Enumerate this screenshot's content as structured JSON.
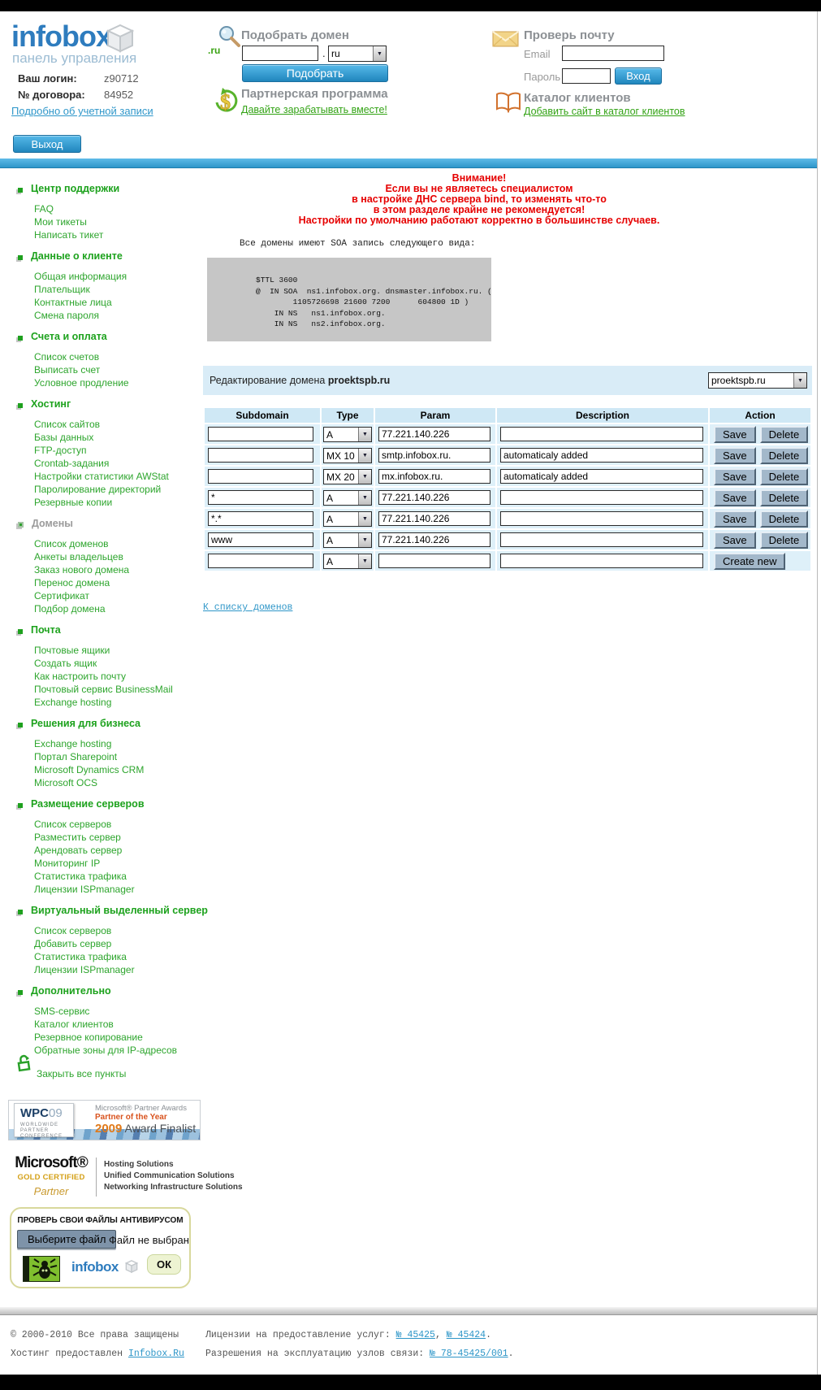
{
  "header": {
    "logo": "infobox",
    "logo_subtitle": "панель управления",
    "login_label": "Ваш логин:",
    "login_value": "z90712",
    "contract_label": "№ договора:",
    "contract_value": "84952",
    "account_link": "Подробно об учетной записи",
    "logout_button": "Выход",
    "domain_search": {
      "title": "Подобрать домен",
      "icon_caption": ".ru",
      "input_value": "",
      "dot": ".",
      "tld_selected": "ru",
      "submit": "Подобрать"
    },
    "partner": {
      "title": "Партнерская программа",
      "link": "Давайте зарабатывать вместе!"
    },
    "mail_check": {
      "title": "Проверь почту",
      "email_label": "Email",
      "password_label": "Пароль",
      "submit": "Вход"
    },
    "catalog": {
      "title": "Каталог клиентов",
      "link": "Добавить сайт в каталог клиентов"
    }
  },
  "sidebar": {
    "sections": [
      {
        "title": "Центр поддержки",
        "active": false,
        "items": [
          "FAQ",
          "Мои тикеты",
          "Написать тикет"
        ]
      },
      {
        "title": "Данные о клиенте",
        "active": false,
        "items": [
          "Общая информация",
          "Плательщик",
          "Контактные лица",
          "Смена пароля"
        ]
      },
      {
        "title": "Счета и оплата",
        "active": false,
        "items": [
          "Список счетов",
          "Выписать счет",
          "Условное продление"
        ]
      },
      {
        "title": "Хостинг",
        "active": false,
        "items": [
          "Список сайтов",
          "Базы данных",
          "FTP-доступ",
          "Crontab-задания",
          "Настройки статистики AWStat",
          "Паролирование директорий",
          "Резервные копии"
        ]
      },
      {
        "title": "Домены",
        "active": true,
        "items": [
          "Список доменов",
          "Анкеты владельцев",
          "Заказ нового домена",
          "Перенос домена",
          "Сертификат",
          "Подбор домена"
        ]
      },
      {
        "title": "Почта",
        "active": false,
        "items": [
          "Почтовые ящики",
          "Создать ящик",
          "Как настроить почту",
          "Почтовый сервис BusinessMail",
          "Exchange hosting"
        ]
      },
      {
        "title": "Решения для бизнеса",
        "active": false,
        "items": [
          "Exchange hosting",
          "Портал Sharepoint",
          "Microsoft Dynamics CRM",
          "Microsoft OCS"
        ]
      },
      {
        "title": "Размещение серверов",
        "active": false,
        "items": [
          "Список серверов",
          "Разместить сервер",
          "Арендовать сервер",
          "Мониторинг IP",
          "Статистика трафика",
          "Лицензии ISPmanager"
        ]
      },
      {
        "title": "Виртуальный выделенный сервер",
        "active": false,
        "items": [
          "Список серверов",
          "Добавить сервер",
          "Статистика трафика",
          "Лицензии ISPmanager"
        ]
      },
      {
        "title": "Дополнительно",
        "active": false,
        "items": [
          "SMS-сервис",
          "Каталог клиентов",
          "Резервное копирование",
          "Обратные зоны для IP-адресов"
        ]
      }
    ],
    "collapse_all": "Закрыть все пункты"
  },
  "main": {
    "warning_lines": [
      "Внимание!",
      "Если вы не являетесь специалистом",
      "в настройке ДНС сервера bind, то изменять что-то",
      "в этом разделе крайне не рекомендуется!",
      "Настройки по умолчанию работают корректно в большинстве случаев."
    ],
    "soa_intro": "Все домены имеют SOA запись следующего вида:",
    "soa_record": "$TTL 3600\n@  IN SOA  ns1.infobox.org. dnsmaster.infobox.ru. (\n        1105726698 21600 7200      604800 1D )\n    IN NS   ns1.infobox.org.\n    IN NS   ns2.infobox.org.",
    "editing_prefix": "Редактирование домена ",
    "editing_domain": "proektspb.ru",
    "domain_select_value": "proektspb.ru",
    "table": {
      "headers": [
        "Subdomain",
        "Type",
        "Param",
        "Description",
        "Action"
      ],
      "rows": [
        {
          "subdomain": "",
          "type": "A",
          "param": "77.221.140.226",
          "description": "",
          "actions": [
            "Save",
            "Delete"
          ]
        },
        {
          "subdomain": "",
          "type": "MX 10",
          "param": "smtp.infobox.ru.",
          "description": "automaticaly added",
          "actions": [
            "Save",
            "Delete"
          ]
        },
        {
          "subdomain": "",
          "type": "MX 20",
          "param": "mx.infobox.ru.",
          "description": "automaticaly added",
          "actions": [
            "Save",
            "Delete"
          ]
        },
        {
          "subdomain": "*",
          "type": "A",
          "param": "77.221.140.226",
          "description": "",
          "actions": [
            "Save",
            "Delete"
          ]
        },
        {
          "subdomain": "*.*",
          "type": "A",
          "param": "77.221.140.226",
          "description": "",
          "actions": [
            "Save",
            "Delete"
          ]
        },
        {
          "subdomain": "www",
          "type": "A",
          "param": "77.221.140.226",
          "description": "",
          "actions": [
            "Save",
            "Delete"
          ]
        },
        {
          "subdomain": "",
          "type": "A",
          "param": "",
          "description": "",
          "actions": [
            "Create new"
          ]
        }
      ]
    },
    "back_link": "К списку доменов"
  },
  "banners": {
    "wpc": {
      "wpc": "WPC",
      "year": "09",
      "conference_lines": [
        "WORLDWIDE",
        "PARTNER",
        "CONFERENCE"
      ],
      "awards": "Microsoft® Partner Awards",
      "partner_of_year": "Partner of the Year",
      "finalist_year": "2009",
      "finalist": " Award Finalist"
    },
    "ms_gold": {
      "microsoft": "Microsoft®",
      "gold": "GOLD CERTIFIED",
      "partner": "Partner",
      "solutions": [
        "Hosting Solutions",
        "Unified Communication Solutions",
        "Networking Infrastructure Solutions"
      ]
    },
    "antivirus": {
      "title": "ПРОВЕРЬ СВОИ ФАЙЛЫ АНТИВИРУСОМ",
      "choose_file": "Выберите файл",
      "no_file": "Файл не выбран",
      "logo": "infobox",
      "ok": "ОК"
    }
  },
  "footer": {
    "copyright": "© 2000-2010 Все права защищены",
    "hosting_prefix": "Хостинг предоставлен ",
    "hosting_link": "Infobox.Ru",
    "licenses_prefix": "Лицензии на предоставление услуг: ",
    "license_links": [
      "№ 45425",
      "№ 45424"
    ],
    "separator": ", ",
    "terminator": ".",
    "permits_prefix": "Разрешения на эксплуатацию узлов связи: ",
    "permit_link": "№ 78-45425/001"
  },
  "icons": {
    "logo": "cube-icon",
    "domain_search": "magnifier-ru-icon",
    "partner": "dollar-icon",
    "mail_check": "envelope-icon",
    "catalog": "open-book-icon",
    "section_bullet": "green-square-icon",
    "collapse": "open-lock-icon",
    "antivirus": "drweb-spider-icon",
    "select_arrow": "chevron-down-icon"
  }
}
